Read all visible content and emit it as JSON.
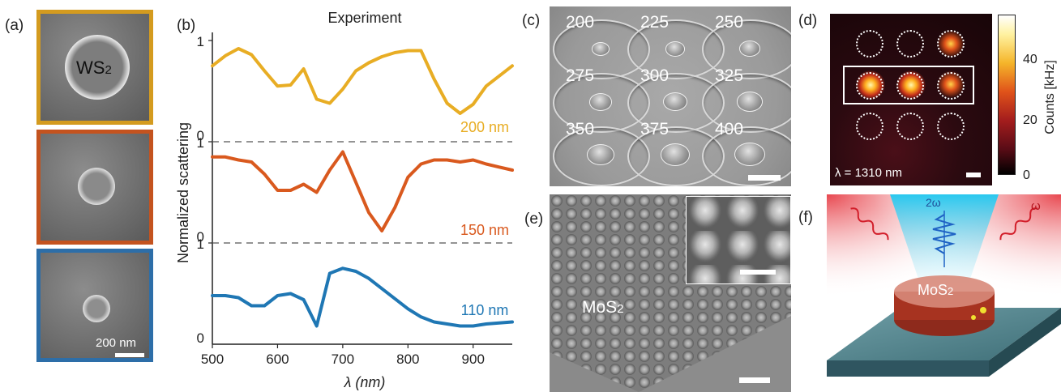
{
  "panel_labels": {
    "a": "(a)",
    "b": "(b)",
    "c": "(c)",
    "d": "(d)",
    "e": "(e)",
    "f": "(f)"
  },
  "panel_a": {
    "material_label": "WS2",
    "scale_bar_label": "200 nm",
    "frame_colors": [
      "#d49b1f",
      "#c4531f",
      "#2d6ea8"
    ]
  },
  "chart_data": {
    "type": "line",
    "title": "Experiment",
    "xlabel": "λ (nm)",
    "ylabel": "Normalized scattering",
    "xlim": [
      500,
      960
    ],
    "xticks": [
      "500",
      "600",
      "700",
      "800",
      "900"
    ],
    "yticks_each_panel": [
      "0",
      "1"
    ],
    "series": [
      {
        "name": "200 nm",
        "color": "#e8ad24",
        "x": [
          500,
          520,
          540,
          560,
          580,
          600,
          620,
          640,
          660,
          680,
          700,
          720,
          740,
          760,
          780,
          800,
          820,
          840,
          860,
          880,
          900,
          920,
          940,
          960
        ],
        "y": [
          0.75,
          0.85,
          0.92,
          0.86,
          0.7,
          0.55,
          0.56,
          0.72,
          0.42,
          0.38,
          0.52,
          0.7,
          0.78,
          0.84,
          0.88,
          0.9,
          0.9,
          0.62,
          0.38,
          0.28,
          0.37,
          0.55,
          0.65,
          0.75
        ]
      },
      {
        "name": "150 nm",
        "color": "#d9591e",
        "x": [
          500,
          520,
          540,
          560,
          580,
          600,
          620,
          640,
          660,
          680,
          700,
          720,
          740,
          760,
          780,
          800,
          820,
          840,
          860,
          880,
          900,
          920,
          940,
          960
        ],
        "y": [
          0.85,
          0.85,
          0.82,
          0.8,
          0.68,
          0.52,
          0.52,
          0.58,
          0.5,
          0.72,
          0.9,
          0.6,
          0.3,
          0.12,
          0.35,
          0.65,
          0.78,
          0.82,
          0.82,
          0.8,
          0.82,
          0.78,
          0.75,
          0.72
        ]
      },
      {
        "name": "110 nm",
        "color": "#1f77b4",
        "x": [
          500,
          520,
          540,
          560,
          580,
          600,
          620,
          640,
          660,
          680,
          700,
          720,
          740,
          760,
          780,
          800,
          820,
          840,
          860,
          880,
          900,
          920,
          940,
          960
        ],
        "y": [
          0.48,
          0.48,
          0.46,
          0.38,
          0.38,
          0.48,
          0.5,
          0.44,
          0.18,
          0.7,
          0.75,
          0.72,
          0.65,
          0.55,
          0.45,
          0.35,
          0.27,
          0.22,
          0.2,
          0.18,
          0.18,
          0.2,
          0.21,
          0.22
        ]
      }
    ]
  },
  "panel_c": {
    "labels": [
      "200",
      "225",
      "250",
      "275",
      "300",
      "325",
      "350",
      "375",
      "400"
    ]
  },
  "panel_d": {
    "wavelength_label": "λ = 1310 nm",
    "colorbar_label": "Counts [kHz]",
    "colorbar_ticks": [
      "40",
      "20",
      "0"
    ]
  },
  "panel_e": {
    "material_label": "MoS2"
  },
  "panel_f": {
    "label_2w": "2ω",
    "label_w": "ω",
    "material_label": "MoS2"
  }
}
